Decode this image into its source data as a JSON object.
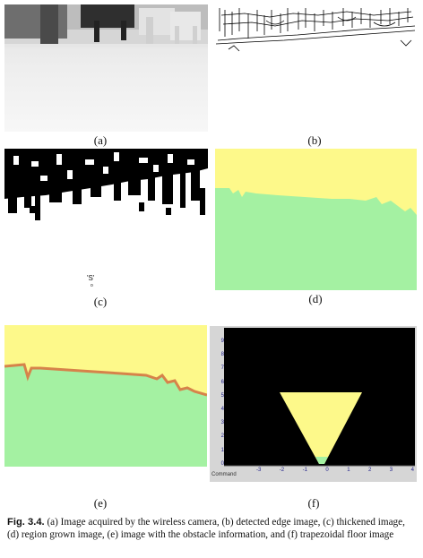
{
  "figure": {
    "labels": {
      "a": "(a)",
      "b": "(b)",
      "c": "(c)",
      "d": "(d)",
      "e": "(e)",
      "f": "(f)"
    },
    "panel_c_marker": "'S'",
    "panel_c_marker_sub": "o",
    "panel_f_axis": {
      "y_ticks": [
        "9",
        "8",
        "7",
        "6",
        "5",
        "4",
        "3",
        "2",
        "1",
        "0"
      ],
      "x_ticks": [
        "-3",
        "-2",
        "-1",
        "0",
        "1",
        "2",
        "3",
        "4"
      ],
      "command_label": "Command"
    },
    "caption": {
      "figure_id": "Fig. 3.4.",
      "text": "(a) Image acquired by the wireless camera, (b) detected edge image, (c) thickened image, (d) region grown image, (e) image with the obstacle information, and (f) trapezoidal floor image"
    },
    "colors": {
      "floor_green": "#a4f1a2",
      "obstacle_yellow": "#fdf98a",
      "edge_orange": "#d6834a",
      "plot_black": "#000000"
    }
  }
}
